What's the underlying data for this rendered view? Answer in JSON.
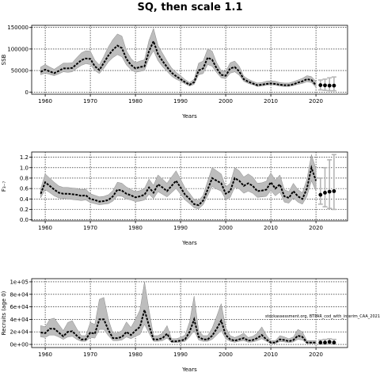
{
  "title": "SQ, then scale 1.1",
  "source_note": "stockassessment.org, BTPAR_cod_with_interim_CAA_2021",
  "colors": {
    "band": "#bdbdbd",
    "line": "#000000",
    "grid": "#000000",
    "error": "#b5b5b5"
  },
  "chart_data": [
    {
      "type": "line",
      "ylabel": "SSB",
      "xlabel": "Years",
      "xlim": [
        1957,
        2027
      ],
      "ylim": [
        -5000,
        155000
      ],
      "xticks": [
        "1960",
        "1970",
        "1980",
        "1990",
        "2000",
        "2010",
        "2020"
      ],
      "yticks": [
        "0",
        "50000",
        "100000",
        "150000"
      ],
      "grid": true,
      "years": [
        1959,
        1960,
        1961,
        1962,
        1963,
        1964,
        1965,
        1966,
        1967,
        1968,
        1969,
        1970,
        1971,
        1972,
        1973,
        1974,
        1975,
        1976,
        1977,
        1978,
        1979,
        1980,
        1981,
        1982,
        1983,
        1984,
        1985,
        1986,
        1987,
        1988,
        1989,
        1990,
        1991,
        1992,
        1993,
        1994,
        1995,
        1996,
        1997,
        1998,
        1999,
        2000,
        2001,
        2002,
        2003,
        2004,
        2005,
        2006,
        2007,
        2008,
        2009,
        2010,
        2011,
        2012,
        2013,
        2014,
        2015,
        2016,
        2017,
        2018,
        2019,
        2020
      ],
      "estimate": [
        47000,
        52000,
        48000,
        44000,
        49000,
        55000,
        55000,
        56000,
        65000,
        74000,
        78000,
        77000,
        60000,
        51000,
        68000,
        85000,
        98000,
        108000,
        102000,
        77000,
        63000,
        55000,
        58000,
        60000,
        95000,
        118000,
        88000,
        72000,
        58000,
        45000,
        37000,
        30000,
        23000,
        17000,
        23000,
        50000,
        55000,
        80000,
        75000,
        55000,
        40000,
        38000,
        55000,
        58000,
        48000,
        30000,
        24000,
        20000,
        16000,
        17000,
        19000,
        20000,
        19000,
        17000,
        16000,
        16000,
        18000,
        22000,
        25000,
        30000,
        28000,
        16000
      ],
      "lower": [
        40000,
        44000,
        41000,
        38000,
        42000,
        47000,
        46000,
        47000,
        55000,
        62000,
        66000,
        64000,
        50000,
        43000,
        55000,
        70000,
        80000,
        87000,
        82000,
        63000,
        52000,
        46000,
        48000,
        50000,
        78000,
        96000,
        73000,
        59000,
        48000,
        37000,
        30000,
        25000,
        19000,
        14000,
        18000,
        40000,
        43000,
        64000,
        60000,
        45000,
        33000,
        31000,
        44000,
        47000,
        39000,
        25000,
        20000,
        17000,
        13000,
        14000,
        16000,
        17000,
        16000,
        14000,
        13000,
        13000,
        15000,
        18000,
        20000,
        24000,
        22000,
        11000
      ],
      "upper": [
        58000,
        64000,
        58000,
        53000,
        60000,
        67000,
        67000,
        68000,
        80000,
        91000,
        96000,
        95000,
        74000,
        63000,
        83000,
        105000,
        122000,
        135000,
        130000,
        96000,
        78000,
        68000,
        72000,
        75000,
        120000,
        148000,
        108000,
        90000,
        72000,
        56000,
        46000,
        38000,
        29000,
        22000,
        30000,
        67000,
        72000,
        100000,
        95000,
        68000,
        50000,
        48000,
        68000,
        72000,
        60000,
        37000,
        30000,
        25000,
        21000,
        22000,
        25000,
        26000,
        25000,
        22000,
        21000,
        21000,
        24000,
        28000,
        32000,
        38000,
        36000,
        25000
      ],
      "forecast_years": [
        2021,
        2022,
        2023,
        2024
      ],
      "forecast": [
        16000,
        15500,
        15000,
        15000
      ],
      "forecast_lower": [
        5000,
        4000,
        3000,
        3000
      ],
      "forecast_upper": [
        28000,
        30000,
        33000,
        35000
      ]
    },
    {
      "type": "line",
      "ylabel": "F₃₋₇",
      "xlabel": "Years",
      "xlim": [
        1957,
        2027
      ],
      "ylim": [
        -0.02,
        1.3
      ],
      "xticks": [
        "1960",
        "1970",
        "1980",
        "1990",
        "2000",
        "2010",
        "2020"
      ],
      "yticks": [
        "0.0",
        "0.2",
        "0.4",
        "0.6",
        "0.8",
        "1.0",
        "1.2"
      ],
      "grid": true,
      "years": [
        1959,
        1960,
        1961,
        1962,
        1963,
        1964,
        1965,
        1966,
        1967,
        1968,
        1969,
        1970,
        1971,
        1972,
        1973,
        1974,
        1975,
        1976,
        1977,
        1978,
        1979,
        1980,
        1981,
        1982,
        1983,
        1984,
        1985,
        1986,
        1987,
        1988,
        1989,
        1990,
        1991,
        1992,
        1993,
        1994,
        1995,
        1996,
        1997,
        1998,
        1999,
        2000,
        2001,
        2002,
        2003,
        2004,
        2005,
        2006,
        2007,
        2008,
        2009,
        2010,
        2011,
        2012,
        2013,
        2014,
        2015,
        2016,
        2017,
        2018,
        2019,
        2020
      ],
      "estimate": [
        0.5,
        0.72,
        0.65,
        0.58,
        0.52,
        0.5,
        0.5,
        0.49,
        0.48,
        0.46,
        0.47,
        0.4,
        0.38,
        0.35,
        0.36,
        0.38,
        0.45,
        0.58,
        0.56,
        0.5,
        0.47,
        0.43,
        0.45,
        0.48,
        0.62,
        0.52,
        0.68,
        0.62,
        0.55,
        0.65,
        0.75,
        0.62,
        0.48,
        0.4,
        0.3,
        0.28,
        0.37,
        0.58,
        0.8,
        0.75,
        0.7,
        0.5,
        0.55,
        0.8,
        0.75,
        0.65,
        0.7,
        0.65,
        0.55,
        0.56,
        0.58,
        0.72,
        0.6,
        0.68,
        0.45,
        0.42,
        0.55,
        0.45,
        0.4,
        0.6,
        1.0,
        0.75
      ],
      "lower": [
        0.42,
        0.58,
        0.52,
        0.46,
        0.42,
        0.41,
        0.4,
        0.39,
        0.38,
        0.37,
        0.38,
        0.33,
        0.31,
        0.29,
        0.3,
        0.31,
        0.36,
        0.46,
        0.45,
        0.4,
        0.38,
        0.35,
        0.36,
        0.38,
        0.49,
        0.41,
        0.54,
        0.49,
        0.44,
        0.52,
        0.6,
        0.49,
        0.38,
        0.31,
        0.23,
        0.21,
        0.29,
        0.46,
        0.64,
        0.59,
        0.55,
        0.39,
        0.43,
        0.63,
        0.59,
        0.51,
        0.55,
        0.51,
        0.43,
        0.44,
        0.45,
        0.56,
        0.46,
        0.53,
        0.34,
        0.32,
        0.42,
        0.34,
        0.3,
        0.45,
        0.75,
        0.55
      ],
      "upper": [
        0.6,
        0.88,
        0.8,
        0.72,
        0.65,
        0.62,
        0.62,
        0.61,
        0.6,
        0.58,
        0.59,
        0.5,
        0.47,
        0.44,
        0.45,
        0.48,
        0.56,
        0.72,
        0.7,
        0.63,
        0.58,
        0.54,
        0.56,
        0.6,
        0.78,
        0.66,
        0.86,
        0.78,
        0.7,
        0.82,
        0.94,
        0.78,
        0.61,
        0.51,
        0.39,
        0.37,
        0.47,
        0.74,
        1.0,
        0.94,
        0.88,
        0.63,
        0.7,
        1.0,
        0.94,
        0.82,
        0.88,
        0.82,
        0.7,
        0.71,
        0.74,
        0.9,
        0.76,
        0.86,
        0.58,
        0.54,
        0.7,
        0.58,
        0.52,
        0.78,
        1.25,
        0.98
      ],
      "forecast_years": [
        2021,
        2022,
        2023,
        2024
      ],
      "forecast": [
        0.48,
        0.52,
        0.54,
        0.55
      ],
      "forecast_lower": [
        0.3,
        0.25,
        0.22,
        0.2
      ],
      "forecast_upper": [
        0.8,
        1.0,
        1.15,
        1.25
      ]
    },
    {
      "type": "line",
      "ylabel": "Recruits (age 0)",
      "xlabel": "Years",
      "xlim": [
        1957,
        2027
      ],
      "ylim": [
        -5000,
        105000
      ],
      "xticks": [
        "1960",
        "1970",
        "1980",
        "1990",
        "2000",
        "2010",
        "2020"
      ],
      "yticks": [
        "0e+00",
        "2e+04",
        "4e+04",
        "6e+04",
        "8e+04",
        "1e+05"
      ],
      "grid": true,
      "annotation": "stockassessment.org, BTPAR_cod_with_interim_CAA_2021",
      "years": [
        1959,
        1960,
        1961,
        1962,
        1963,
        1964,
        1965,
        1966,
        1967,
        1968,
        1969,
        1970,
        1971,
        1972,
        1973,
        1974,
        1975,
        1976,
        1977,
        1978,
        1979,
        1980,
        1981,
        1982,
        1983,
        1984,
        1985,
        1986,
        1987,
        1988,
        1989,
        1990,
        1991,
        1992,
        1993,
        1994,
        1995,
        1996,
        1997,
        1998,
        1999,
        2000,
        2001,
        2002,
        2003,
        2004,
        2005,
        2006,
        2007,
        2008,
        2009,
        2010,
        2011,
        2012,
        2013,
        2014,
        2015,
        2016,
        2017,
        2018,
        2019,
        2020
      ],
      "estimate": [
        19000,
        18000,
        25000,
        25000,
        19000,
        13000,
        20000,
        21000,
        14000,
        8000,
        8000,
        19000,
        17000,
        40000,
        40000,
        23000,
        10000,
        10000,
        12000,
        20000,
        15000,
        22000,
        28000,
        55000,
        30000,
        8000,
        8000,
        10000,
        17000,
        5000,
        5000,
        6000,
        8000,
        20000,
        40000,
        12000,
        8000,
        8000,
        14000,
        25000,
        38000,
        15000,
        8000,
        6000,
        8000,
        10000,
        6000,
        7000,
        10000,
        15000,
        8000,
        3000,
        3000,
        8000,
        7000,
        5000,
        7000,
        14000,
        12000,
        3000,
        3000,
        3000
      ],
      "lower": [
        12000,
        11000,
        15000,
        15000,
        12000,
        8000,
        12000,
        13000,
        8000,
        5000,
        5000,
        11000,
        10000,
        24000,
        24000,
        14000,
        6000,
        6000,
        7000,
        12000,
        9000,
        13000,
        16000,
        32000,
        18000,
        5000,
        5000,
        6000,
        10000,
        3000,
        3000,
        3500,
        5000,
        12000,
        22000,
        7000,
        5000,
        5000,
        8000,
        15000,
        22000,
        9000,
        5000,
        3500,
        5000,
        6000,
        3500,
        4000,
        6000,
        9000,
        5000,
        1500,
        1500,
        4500,
        4000,
        3000,
        4000,
        8000,
        7000,
        1500,
        1500,
        1500
      ],
      "upper": [
        30000,
        28000,
        40000,
        42000,
        32000,
        22000,
        35000,
        38000,
        25000,
        14000,
        14000,
        35000,
        32000,
        72000,
        75000,
        40000,
        18000,
        18000,
        22000,
        36000,
        27000,
        40000,
        55000,
        100000,
        55000,
        14000,
        14000,
        18000,
        30000,
        9000,
        9000,
        11000,
        15000,
        36000,
        77000,
        22000,
        14000,
        14000,
        26000,
        45000,
        65000,
        27000,
        14000,
        11000,
        14000,
        18000,
        11000,
        13000,
        18000,
        28000,
        15000,
        6000,
        6000,
        14000,
        12000,
        9000,
        12000,
        24000,
        20000,
        6000,
        6000,
        6000
      ],
      "forecast_years": [
        2021,
        2022,
        2023,
        2024
      ],
      "forecast": [
        3000,
        3000,
        4000,
        3000
      ],
      "forecast_lower": [
        500,
        500,
        500,
        500
      ],
      "forecast_upper": [
        7000,
        8000,
        9000,
        8000
      ]
    }
  ]
}
